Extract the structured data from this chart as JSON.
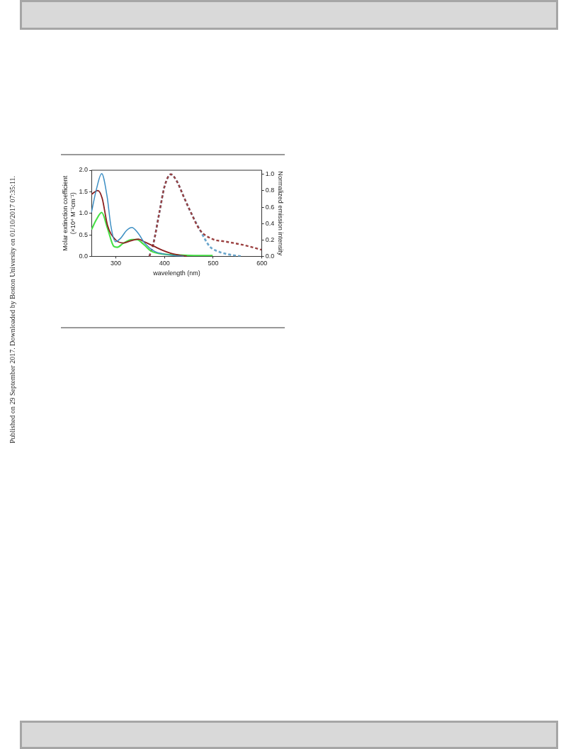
{
  "chart_data": {
    "type": "line",
    "xlabel": "wavelength (nm)",
    "ylabel": "Molar extinction coefficient\n(×10⁴ M⁻¹cm⁻¹)",
    "y2label": "Normalized emission intensity",
    "xlim": [
      250,
      600
    ],
    "xticks": [
      300,
      400,
      500,
      600
    ],
    "ylim": [
      0,
      2.0
    ],
    "yticks": [
      {
        "value": 0,
        "label": "0.0"
      },
      {
        "value": 0.5,
        "label": "0.5"
      },
      {
        "value": 1,
        "label": "1.0"
      },
      {
        "value": 1.5,
        "label": "1.5"
      },
      {
        "value": 2,
        "label": "2.0"
      }
    ],
    "y2lim": [
      0,
      1.05
    ],
    "y2ticks": [
      {
        "value": 0,
        "label": "0.0"
      },
      {
        "value": 0.2,
        "label": "0.2"
      },
      {
        "value": 0.4,
        "label": "0.4"
      },
      {
        "value": 0.6,
        "label": "0.6"
      },
      {
        "value": 0.8,
        "label": "0.8"
      },
      {
        "value": 1,
        "label": "1.0"
      }
    ],
    "grid": false,
    "legend": false,
    "marker": "none",
    "series": [
      {
        "color": "#3d8fc4",
        "line_style": "solid",
        "x": [
          250,
          260,
          271,
          282,
          290,
          299,
          310,
          322,
          333,
          345,
          360,
          379,
          400,
          419,
          440
        ],
        "values": [
          1.02,
          1.55,
          1.92,
          1.4,
          0.7,
          0.34,
          0.42,
          0.6,
          0.67,
          0.55,
          0.3,
          0.12,
          0.05,
          0.02,
          0.0
        ]
      },
      {
        "color": "#8b2020",
        "line_style": "solid",
        "x": [
          250,
          263,
          272,
          283,
          299,
          316,
          330,
          346,
          360,
          379,
          396,
          413,
          430,
          446
        ],
        "values": [
          1.44,
          1.53,
          1.35,
          0.72,
          0.39,
          0.31,
          0.36,
          0.4,
          0.33,
          0.23,
          0.14,
          0.07,
          0.03,
          0.0
        ]
      },
      {
        "color": "#44e044",
        "line_style": "solid",
        "x": [
          250,
          260,
          271,
          283,
          296,
          303,
          315,
          333,
          343,
          358,
          373,
          399,
          430,
          460,
          499
        ],
        "values": [
          0.62,
          0.85,
          1.02,
          0.65,
          0.23,
          0.21,
          0.3,
          0.39,
          0.39,
          0.27,
          0.12,
          0.05,
          0.03,
          0.02,
          0.02
        ]
      },
      {
        "color": "#9b4040",
        "line_style": "dashed",
        "axis": "y2",
        "x": [
          369,
          377,
          390,
          400,
          413,
          425,
          440,
          453,
          473,
          499,
          525,
          553,
          575,
          599
        ],
        "values": [
          0.0,
          0.15,
          0.55,
          0.85,
          1.0,
          0.92,
          0.72,
          0.55,
          0.32,
          0.21,
          0.18,
          0.15,
          0.12,
          0.08
        ]
      },
      {
        "color": "#6aa6cc",
        "line_style": "dashed",
        "axis": "y2",
        "x": [
          369,
          377,
          390,
          400,
          413,
          425,
          440,
          453,
          473,
          493,
          510,
          526,
          545,
          559
        ],
        "values": [
          0.0,
          0.15,
          0.55,
          0.85,
          1.0,
          0.92,
          0.72,
          0.55,
          0.32,
          0.12,
          0.06,
          0.03,
          0.01,
          0.0
        ]
      }
    ],
    "annotations": [
      "Published on 29 September 2017. Downloaded by Boston University on 01/10/2017 07:35:11."
    ]
  }
}
